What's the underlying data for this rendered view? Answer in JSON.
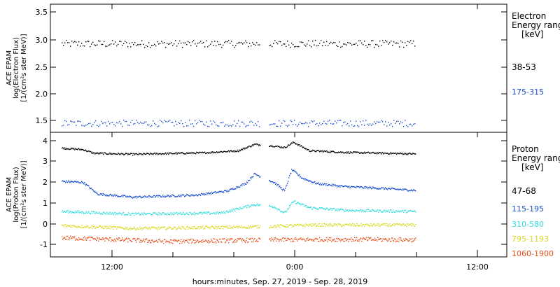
{
  "chart_data": [
    {
      "type": "scatter",
      "panel": "electron",
      "ylabel_lines": [
        "ACE EPAM",
        "log(Electron Flux)",
        "[1/(cm²s ster MeV)]"
      ],
      "yticks": [
        "3.5",
        "3.0",
        "2.5",
        "2.0",
        "1.5"
      ],
      "ylim": [
        1.3,
        3.62
      ],
      "legend_title": [
        "Electron",
        "Energy range",
        "[keV]"
      ],
      "series": [
        {
          "name": "38-53",
          "color": "#000000",
          "base": 2.91,
          "scatter": 0.065,
          "profile": [
            [
              0,
              2.91
            ],
            [
              1,
              2.91
            ]
          ]
        },
        {
          "name": "175-315",
          "color": "#1a4fd0",
          "base": 1.47,
          "scatter": 0.06,
          "profile": [
            [
              0,
              1.47
            ],
            [
              1,
              1.47
            ]
          ]
        }
      ]
    },
    {
      "type": "scatter",
      "panel": "proton",
      "ylabel_lines": [
        "ACE EPAM",
        "log(Proton Flux)",
        "[1/(cm²s ster MeV)]"
      ],
      "yticks": [
        "4",
        "3",
        "2",
        "1",
        "0",
        "-1"
      ],
      "ylim": [
        -1.55,
        4.35
      ],
      "legend_title": [
        "Proton",
        "Energy range",
        "[keV]"
      ],
      "series": [
        {
          "name": "47-68",
          "color": "#000000",
          "scatter": 0.04,
          "profile": [
            [
              0,
              3.62
            ],
            [
              0.06,
              3.55
            ],
            [
              0.09,
              3.38
            ],
            [
              0.2,
              3.33
            ],
            [
              0.4,
              3.4
            ],
            [
              0.5,
              3.5
            ],
            [
              0.545,
              3.8
            ],
            [
              0.6,
              3.72
            ],
            [
              0.63,
              3.65
            ],
            [
              0.655,
              3.9
            ],
            [
              0.7,
              3.5
            ],
            [
              0.8,
              3.42
            ],
            [
              1,
              3.35
            ]
          ]
        },
        {
          "name": "115-195",
          "color": "#1a4fd0",
          "scatter": 0.05,
          "profile": [
            [
              0,
              2.05
            ],
            [
              0.06,
              2.0
            ],
            [
              0.1,
              1.45
            ],
            [
              0.2,
              1.3
            ],
            [
              0.38,
              1.4
            ],
            [
              0.47,
              1.6
            ],
            [
              0.52,
              1.95
            ],
            [
              0.545,
              2.4
            ],
            [
              0.6,
              2.0
            ],
            [
              0.63,
              1.6
            ],
            [
              0.65,
              2.6
            ],
            [
              0.68,
              2.2
            ],
            [
              0.72,
              1.95
            ],
            [
              0.8,
              1.8
            ],
            [
              0.9,
              1.72
            ],
            [
              1,
              1.62
            ]
          ]
        },
        {
          "name": "310-580",
          "color": "#33dede",
          "scatter": 0.06,
          "profile": [
            [
              0,
              0.62
            ],
            [
              0.2,
              0.5
            ],
            [
              0.45,
              0.55
            ],
            [
              0.545,
              0.95
            ],
            [
              0.6,
              0.85
            ],
            [
              0.63,
              0.55
            ],
            [
              0.655,
              1.1
            ],
            [
              0.7,
              0.8
            ],
            [
              0.8,
              0.68
            ],
            [
              1,
              0.62
            ]
          ]
        },
        {
          "name": "795-1193",
          "color": "#d8d820",
          "scatter": 0.07,
          "profile": [
            [
              0,
              -0.05
            ],
            [
              0.2,
              -0.18
            ],
            [
              0.5,
              -0.12
            ],
            [
              0.6,
              -0.08
            ],
            [
              0.7,
              -0.02
            ],
            [
              1,
              -0.02
            ]
          ]
        },
        {
          "name": "1060-1900",
          "color": "#e8501a",
          "scatter": 0.1,
          "profile": [
            [
              0,
              -0.62
            ],
            [
              0.3,
              -0.8
            ],
            [
              0.6,
              -0.72
            ],
            [
              0.8,
              -0.7
            ],
            [
              1,
              -0.72
            ]
          ]
        }
      ]
    }
  ],
  "xaxis": {
    "ticks": [
      "12:00",
      "0:00",
      "12:00"
    ],
    "label": "hours:minutes, Sep. 27, 2019 - Sep. 28, 2019"
  },
  "colors": {
    "axis": "#000000",
    "background": "#ffffff"
  }
}
